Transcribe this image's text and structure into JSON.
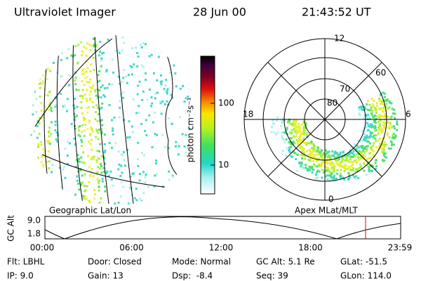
{
  "header": {
    "title": "Ultraviolet Imager",
    "date": "28 Jun 00",
    "time": "21:43:52 UT"
  },
  "colorbar": {
    "label": "photon cm⁻²s⁻¹",
    "ticks": [
      "100",
      "10"
    ]
  },
  "geo_panel": {
    "label": "Geographic Lat/Lon"
  },
  "polar_panel": {
    "label": "Apex MLat/MLT",
    "mlt_labels": [
      "12",
      "6",
      "0",
      "18"
    ],
    "lat_labels": [
      "80",
      "70",
      "60"
    ]
  },
  "altitude_plot": {
    "axis_label": "GC Alt",
    "y_labels": [
      "9.0",
      "1.8"
    ],
    "x_labels": [
      "00:00",
      "06:00",
      "12:00",
      "18:00",
      "23:59"
    ]
  },
  "info": {
    "rows": [
      [
        "Flt: LBHL",
        "Door: Closed",
        "Mode: Normal",
        "GC Alt: 5.1 Re",
        "GLat: -51.5"
      ],
      [
        "IP: 9.0",
        "Gain: 13",
        "Dsp:  -8.4",
        "Seq: 39",
        "GLon: 114.0"
      ]
    ]
  }
}
